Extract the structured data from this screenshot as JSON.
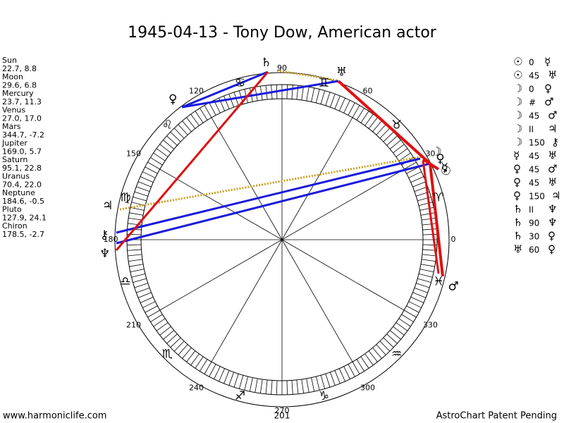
{
  "title": "1945-04-13 - Tony Dow, American actor",
  "planets": [
    {
      "name": "Sun",
      "position": "22.7, 8.8",
      "glyph": "☉"
    },
    {
      "name": "Moon",
      "position": "29.6, 6.8",
      "glyph": "☽"
    },
    {
      "name": "Mercury",
      "position": "23.7, 11.3",
      "glyph": "☿"
    },
    {
      "name": "Venus",
      "position": "27.0, 17.0",
      "glyph": "♀"
    },
    {
      "name": "Mars",
      "position": "344.7, -7.2",
      "glyph": "♂"
    },
    {
      "name": "Jupiter",
      "position": "169.0, 5.7",
      "glyph": "♃"
    },
    {
      "name": "Saturn",
      "position": "95.1, 22.8",
      "glyph": "♄"
    },
    {
      "name": "Uranus",
      "position": "70.4, 22.0",
      "glyph": "♅"
    },
    {
      "name": "Neptune",
      "position": "184.6, -0.5",
      "glyph": "♆"
    },
    {
      "name": "Pluto",
      "position": "127.9, 24.1",
      "glyph": "♀"
    },
    {
      "name": "Chiron",
      "position": "178.5, -2.7",
      "glyph": "⚷"
    }
  ],
  "aspects": [
    [
      "☉",
      "0",
      "☿"
    ],
    [
      "☉",
      "45",
      "♅"
    ],
    [
      "☽",
      "0",
      "♀"
    ],
    [
      "☽",
      "#",
      "♂"
    ],
    [
      "☽",
      "45",
      "♂"
    ],
    [
      "☽",
      "II",
      "♃"
    ],
    [
      "☽",
      "150",
      "⚷"
    ],
    [
      "☿",
      "45",
      "♅"
    ],
    [
      "♀",
      "45",
      "♂"
    ],
    [
      "♀",
      "45",
      "♅"
    ],
    [
      "♀",
      "150",
      "♃"
    ],
    [
      "♄",
      "II",
      "♆"
    ],
    [
      "♄",
      "90",
      "♆"
    ],
    [
      "♄",
      "30",
      "♀"
    ],
    [
      "♅",
      "60",
      "♀"
    ]
  ],
  "degree_labels": [
    "0",
    "30",
    "60",
    "90",
    "120",
    "150",
    "180",
    "210",
    "240",
    "270",
    "300",
    "330"
  ],
  "signs": [
    "♈",
    "♉",
    "♊",
    "♋",
    "♌",
    "♍",
    "♎",
    "♏",
    "♐",
    "♑",
    "♒",
    "♓"
  ],
  "bottom_label": "201",
  "footer": {
    "left": "www.harmoniclife.com",
    "right": "AstroChart Patent Pending"
  }
}
